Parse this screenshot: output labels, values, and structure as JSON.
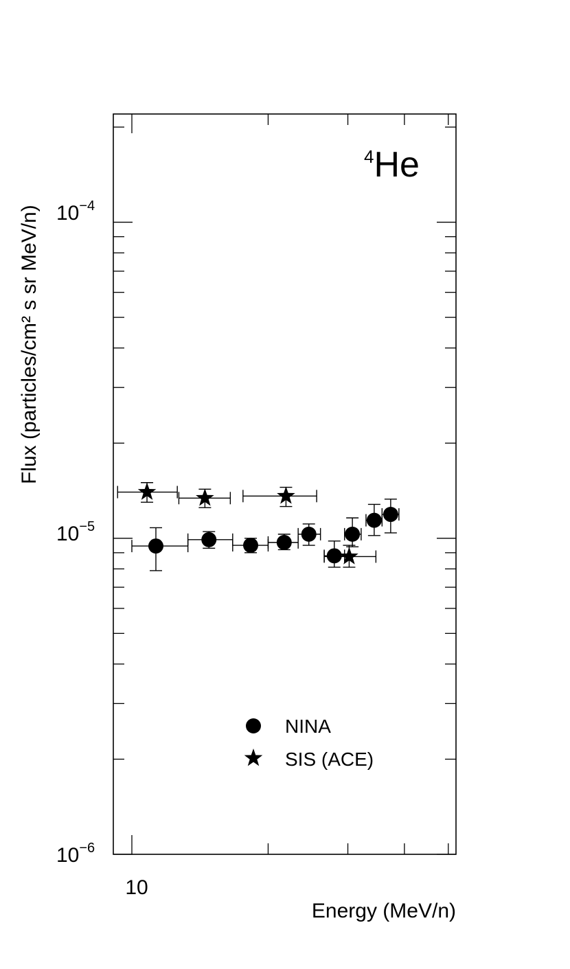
{
  "chart_data": {
    "type": "scatter",
    "title": "He",
    "title_isotope_mass": "4",
    "xlabel": "Energy (MeV/n)",
    "ylabel": "Flux (particles/cm² s sr MeV/n)",
    "x_scale": "log",
    "y_scale": "log",
    "xlim": [
      9.1,
      52
    ],
    "ylim": [
      1e-06,
      0.00022
    ],
    "x_tick_labels": [
      {
        "value": 10,
        "label": "10"
      }
    ],
    "y_tick_labels": [
      {
        "value": 1e-06,
        "base": "10",
        "exp": "−6"
      },
      {
        "value": 1e-05,
        "base": "10",
        "exp": "−5"
      },
      {
        "value": 0.0001,
        "base": "10",
        "exp": "−4"
      }
    ],
    "grid": false,
    "legend_position": "bottom-center",
    "series": [
      {
        "name": "NINA",
        "marker": "circle",
        "points": [
          {
            "x": 11.3,
            "y": 9.45e-06,
            "xerr": [
              10.0,
              13.3
            ],
            "yerr": [
              7.9e-06,
              1.08e-05
            ]
          },
          {
            "x": 14.8,
            "y": 9.9e-06,
            "xerr": [
              13.3,
              16.7
            ],
            "yerr": [
              9.3e-06,
              1.05e-05
            ]
          },
          {
            "x": 18.3,
            "y": 9.5e-06,
            "xerr": [
              16.7,
              20.0
            ],
            "yerr": [
              9e-06,
              1e-05
            ]
          },
          {
            "x": 21.7,
            "y": 9.7e-06,
            "xerr": [
              20.0,
              23.3
            ],
            "yerr": [
              9.2e-06,
              1.03e-05
            ]
          },
          {
            "x": 24.6,
            "y": 1.03e-05,
            "xerr": [
              23.3,
              26.1
            ],
            "yerr": [
              9.5e-06,
              1.11e-05
            ]
          },
          {
            "x": 28.0,
            "y": 8.8e-06,
            "xerr": [
              26.6,
              29.5
            ],
            "yerr": [
              8.1e-06,
              9.8e-06
            ]
          },
          {
            "x": 30.7,
            "y": 1.03e-05,
            "xerr": [
              29.5,
              32.1
            ],
            "yerr": [
              9.4e-06,
              1.16e-05
            ]
          },
          {
            "x": 34.3,
            "y": 1.14e-05,
            "xerr": [
              32.9,
              35.7
            ],
            "yerr": [
              1.02e-05,
              1.28e-05
            ]
          },
          {
            "x": 37.3,
            "y": 1.19e-05,
            "xerr": [
              35.7,
              38.9
            ],
            "yerr": [
              1.04e-05,
              1.33e-05
            ]
          }
        ]
      },
      {
        "name": "SIS (ACE)",
        "marker": "star",
        "points": [
          {
            "x": 10.8,
            "y": 1.4e-05,
            "xerr": [
              9.3,
              12.6
            ],
            "yerr": [
              1.3e-05,
              1.5e-05
            ]
          },
          {
            "x": 14.5,
            "y": 1.34e-05,
            "xerr": [
              12.7,
              16.5
            ],
            "yerr": [
              1.25e-05,
              1.43e-05
            ]
          },
          {
            "x": 21.9,
            "y": 1.36e-05,
            "xerr": [
              17.6,
              25.6
            ],
            "yerr": [
              1.26e-05,
              1.45e-05
            ]
          },
          {
            "x": 30.2,
            "y": 8.75e-06,
            "xerr": [
              26.6,
              34.6
            ],
            "yerr": [
              8.1e-06,
              9.5e-06
            ]
          }
        ]
      }
    ]
  }
}
